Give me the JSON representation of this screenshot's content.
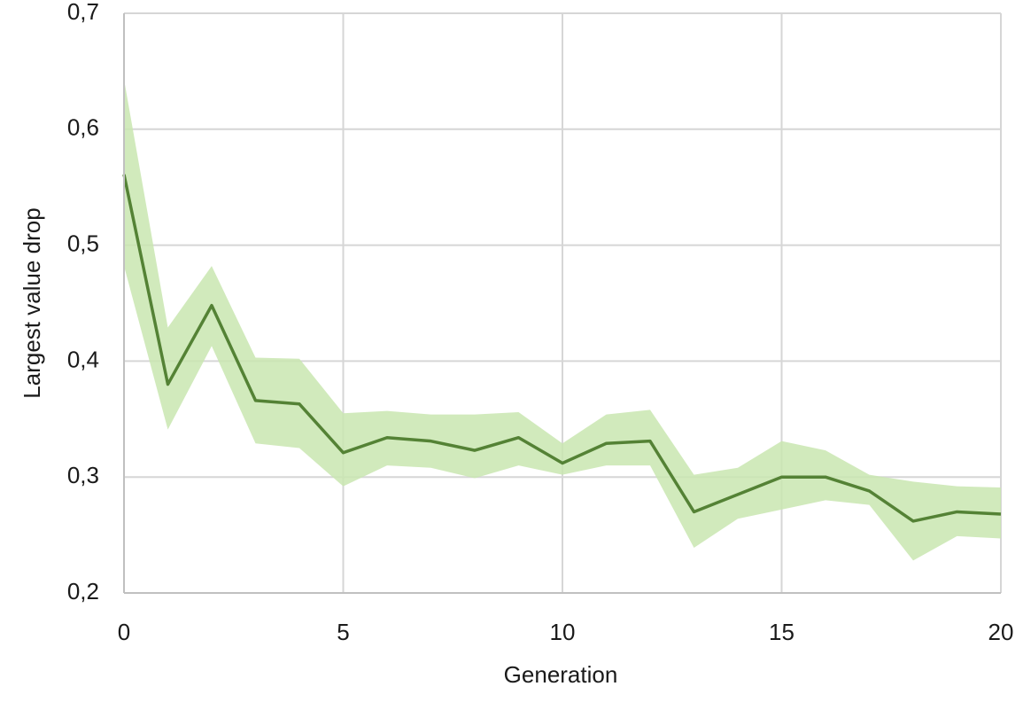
{
  "chart_data": {
    "type": "line",
    "x_label": "Generation",
    "y_label": "Largest value drop",
    "x": [
      0,
      1,
      2,
      3,
      4,
      5,
      6,
      7,
      8,
      9,
      10,
      11,
      12,
      13,
      14,
      15,
      16,
      17,
      18,
      19,
      20
    ],
    "values": [
      0.561,
      0.38,
      0.448,
      0.366,
      0.363,
      0.321,
      0.334,
      0.331,
      0.323,
      0.334,
      0.312,
      0.329,
      0.331,
      0.27,
      0.285,
      0.3,
      0.3,
      0.288,
      0.262,
      0.27,
      0.268
    ],
    "upper": [
      0.643,
      0.429,
      0.482,
      0.403,
      0.402,
      0.355,
      0.357,
      0.354,
      0.354,
      0.356,
      0.329,
      0.354,
      0.358,
      0.302,
      0.308,
      0.331,
      0.323,
      0.302,
      0.296,
      0.292,
      0.291
    ],
    "lower": [
      0.482,
      0.341,
      0.413,
      0.329,
      0.325,
      0.292,
      0.31,
      0.308,
      0.299,
      0.31,
      0.302,
      0.31,
      0.31,
      0.239,
      0.264,
      0.272,
      0.28,
      0.276,
      0.228,
      0.249,
      0.247
    ],
    "color": "#548235",
    "band_color": "#c9e6b0",
    "xlim": [
      0,
      20
    ],
    "xticks": [
      0,
      5,
      10,
      15,
      20
    ],
    "ylim": [
      0.2,
      0.7
    ],
    "yticks": [
      {
        "value": 0.2,
        "label": "0,2"
      },
      {
        "value": 0.3,
        "label": "0,3"
      },
      {
        "value": 0.4,
        "label": "0,4"
      },
      {
        "value": 0.5,
        "label": "0,5"
      },
      {
        "value": 0.6,
        "label": "0,6"
      },
      {
        "value": 0.7,
        "label": "0,7"
      }
    ],
    "grid": true
  }
}
